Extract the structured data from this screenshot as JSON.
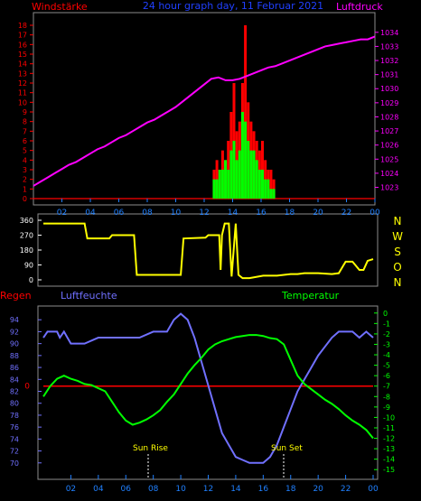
{
  "header": {
    "left_title": "Windstärke",
    "center_title": "24 hour graph day, 11 Februar 2021",
    "right_title": "Luftdruck"
  },
  "colors": {
    "background": "#000000",
    "frame": "#8c8c8c",
    "red": "#ff0000",
    "green": "#00ff00",
    "magenta": "#ff00ff",
    "yellow": "#ffff00",
    "blue": "#7070ff",
    "hour_axis": "#2080ff",
    "white": "#ffffff"
  },
  "x_ticks": [
    "02",
    "04",
    "06",
    "08",
    "10",
    "12",
    "14",
    "16",
    "18",
    "20",
    "22",
    "00"
  ],
  "compass": [
    "N",
    "W",
    "S",
    "O",
    "N"
  ],
  "bottom_labels": {
    "regen": "Regen",
    "luftfeuchte": "Luftfeuchte",
    "temperatur": "Temperatur",
    "sun_rise": "Sun Rise",
    "sun_set": "Sun Set"
  },
  "chart_data": [
    {
      "type": "line+bar",
      "title": "24 hour graph day, 11 Februar 2021",
      "x_hours": [
        0,
        24
      ],
      "left_axis": {
        "label": "Windstärke",
        "range": [
          0,
          18
        ],
        "ticks": [
          0,
          1,
          2,
          3,
          4,
          5,
          6,
          7,
          8,
          9,
          10,
          11,
          12,
          13,
          14,
          15,
          16,
          17,
          18
        ]
      },
      "right_axis": {
        "label": "Luftdruck",
        "range": [
          1022.2,
          1034.5
        ],
        "ticks": [
          1023,
          1024,
          1025,
          1026,
          1027,
          1028,
          1029,
          1030,
          1031,
          1032,
          1033,
          1034
        ]
      },
      "series": [
        {
          "name": "Luftdruck",
          "type": "line",
          "color": "#ff00ff",
          "x": [
            0,
            0.5,
            1,
            1.5,
            2,
            2.5,
            3,
            3.5,
            4,
            4.5,
            5,
            5.5,
            6,
            6.5,
            7,
            7.5,
            8,
            8.5,
            9,
            9.5,
            10,
            10.5,
            11,
            11.5,
            12,
            12.5,
            13,
            13.5,
            14,
            14.5,
            15,
            15.5,
            16,
            16.5,
            17,
            17.5,
            18,
            18.5,
            19,
            19.5,
            20,
            20.5,
            21,
            21.5,
            22,
            22.5,
            23,
            23.5,
            24
          ],
          "y": [
            1023.1,
            1023.4,
            1023.7,
            1024,
            1024.3,
            1024.6,
            1024.8,
            1025.1,
            1025.4,
            1025.7,
            1025.9,
            1026.2,
            1026.5,
            1026.7,
            1027,
            1027.3,
            1027.6,
            1027.8,
            1028.1,
            1028.4,
            1028.7,
            1029.1,
            1029.5,
            1029.9,
            1030.3,
            1030.7,
            1030.8,
            1030.6,
            1030.6,
            1030.7,
            1030.9,
            1031.1,
            1031.3,
            1031.5,
            1031.6,
            1031.8,
            1032,
            1032.2,
            1032.4,
            1032.6,
            1032.8,
            1033,
            1033.1,
            1033.2,
            1033.3,
            1033.4,
            1033.5,
            1033.5,
            1033.7
          ]
        },
        {
          "name": "Windstärke Böen",
          "type": "bar",
          "color": "#ff0000",
          "x": [
            12.6,
            12.8,
            13,
            13.2,
            13.4,
            13.6,
            13.8,
            14,
            14.2,
            14.4,
            14.6,
            14.8,
            15,
            15.2,
            15.4,
            15.6,
            15.8,
            16,
            16.2,
            16.4,
            16.6,
            16.8
          ],
          "y": [
            3,
            4,
            3,
            5,
            4,
            6,
            9,
            12,
            7,
            8,
            12,
            18,
            10,
            8,
            7,
            6,
            5,
            6,
            4,
            3,
            3,
            2
          ]
        },
        {
          "name": "Windstärke Mittel",
          "type": "bar",
          "color": "#00ff00",
          "x": [
            12.6,
            12.8,
            13,
            13.2,
            13.4,
            13.6,
            13.8,
            14,
            14.2,
            14.4,
            14.6,
            14.8,
            15,
            15.2,
            15.4,
            15.6,
            15.8,
            16,
            16.2,
            16.4,
            16.6,
            16.8
          ],
          "y": [
            2,
            2,
            3,
            3,
            4,
            3,
            5,
            6,
            4,
            5,
            9,
            8,
            6,
            5,
            5,
            4,
            3,
            3,
            2,
            2,
            1,
            1
          ]
        }
      ]
    },
    {
      "type": "line",
      "title": "",
      "x_hours": [
        0,
        24
      ],
      "left_axis": {
        "label": "",
        "range": [
          0,
          360
        ],
        "ticks": [
          0,
          90,
          180,
          270,
          360
        ]
      },
      "right_axis": {
        "label": "",
        "ticks": [
          "N",
          "W",
          "S",
          "O",
          "N"
        ]
      },
      "series": [
        {
          "name": "Windrichtung",
          "type": "line",
          "color": "#ffff00",
          "x": [
            0,
            3,
            3.2,
            4.8,
            5,
            6.6,
            6.8,
            9.9,
            10,
            10.2,
            11.8,
            12,
            12.8,
            12.9,
            13,
            13.2,
            13.5,
            13.7,
            14,
            14.2,
            14.5,
            15,
            16,
            17,
            18,
            18.5,
            19,
            20,
            21,
            21.5,
            22,
            22.5,
            23,
            23.3,
            23.6,
            24
          ],
          "y": [
            340,
            340,
            250,
            250,
            270,
            270,
            30,
            30,
            30,
            250,
            255,
            270,
            270,
            60,
            270,
            340,
            340,
            20,
            340,
            30,
            10,
            10,
            25,
            25,
            35,
            35,
            40,
            40,
            35,
            40,
            110,
            110,
            60,
            60,
            115,
            125
          ]
        }
      ]
    },
    {
      "type": "line",
      "title": "",
      "x_hours": [
        0,
        24
      ],
      "left_axis": {
        "label": "Luftfeuchte",
        "range": [
          68,
          96
        ],
        "ticks": [
          70,
          72,
          74,
          76,
          78,
          80,
          82,
          84,
          86,
          88,
          90,
          92,
          94
        ]
      },
      "right_axis": {
        "label": "Temperatur",
        "range": [
          -15.5,
          0.5
        ],
        "ticks": [
          0,
          -1,
          -2,
          -3,
          -4,
          -5,
          -6,
          -7,
          -8,
          -9,
          -10,
          -11,
          -12,
          -13,
          -14,
          -15
        ]
      },
      "regen_axis": {
        "label": "Regen",
        "ticks": [
          0
        ]
      },
      "series": [
        {
          "name": "Luftfeuchte",
          "type": "line",
          "color": "#7070ff",
          "x": [
            0,
            0.3,
            1,
            1.2,
            1.5,
            2,
            2.5,
            3,
            4,
            5,
            6,
            7,
            8,
            9,
            9.5,
            10,
            10.5,
            11,
            11.5,
            12,
            12.5,
            13,
            13.5,
            14,
            14.5,
            15,
            15.5,
            16,
            16.5,
            17,
            17.5,
            18,
            18.5,
            19,
            19.5,
            20,
            20.5,
            21,
            21.5,
            22,
            22.5,
            23,
            23.5,
            24
          ],
          "y": [
            91,
            92,
            92,
            91,
            92,
            90,
            90,
            90,
            91,
            91,
            91,
            91,
            92,
            92,
            94,
            95,
            94,
            91,
            87,
            83,
            79,
            75,
            73,
            71,
            70.5,
            70,
            70,
            70,
            71,
            73,
            76,
            79,
            82,
            84,
            86,
            88,
            89.5,
            91,
            92,
            92,
            92,
            91,
            92,
            91
          ]
        },
        {
          "name": "Temperatur",
          "type": "line",
          "color": "#00ff00",
          "x": [
            0,
            0.5,
            1,
            1.5,
            2,
            2.5,
            3,
            3.5,
            4,
            4.5,
            5,
            5.5,
            6,
            6.5,
            7,
            7.5,
            8,
            8.5,
            9,
            9.5,
            10,
            10.5,
            11,
            11.5,
            12,
            12.5,
            13,
            13.5,
            14,
            14.5,
            15,
            15.5,
            16,
            16.5,
            17,
            17.5,
            18,
            18.5,
            19,
            19.5,
            20,
            20.5,
            21,
            21.5,
            22,
            22.5,
            23,
            23.5,
            24
          ],
          "y": [
            -8,
            -7,
            -6.3,
            -6,
            -6.3,
            -6.5,
            -6.8,
            -6.9,
            -7.2,
            -7.5,
            -8.5,
            -9.5,
            -10.3,
            -10.7,
            -10.5,
            -10.2,
            -9.8,
            -9.3,
            -8.5,
            -7.8,
            -6.8,
            -5.8,
            -5,
            -4.3,
            -3.5,
            -3,
            -2.7,
            -2.5,
            -2.3,
            -2.2,
            -2.1,
            -2.1,
            -2.2,
            -2.4,
            -2.5,
            -3,
            -4.5,
            -6,
            -6.8,
            -7.3,
            -7.8,
            -8.3,
            -8.7,
            -9.2,
            -9.8,
            -10.3,
            -10.7,
            -11.2,
            -12
          ]
        },
        {
          "name": "Regen",
          "type": "line",
          "color": "#ff0000",
          "x": [
            0,
            24
          ],
          "y": [
            0,
            0
          ]
        }
      ]
    }
  ]
}
